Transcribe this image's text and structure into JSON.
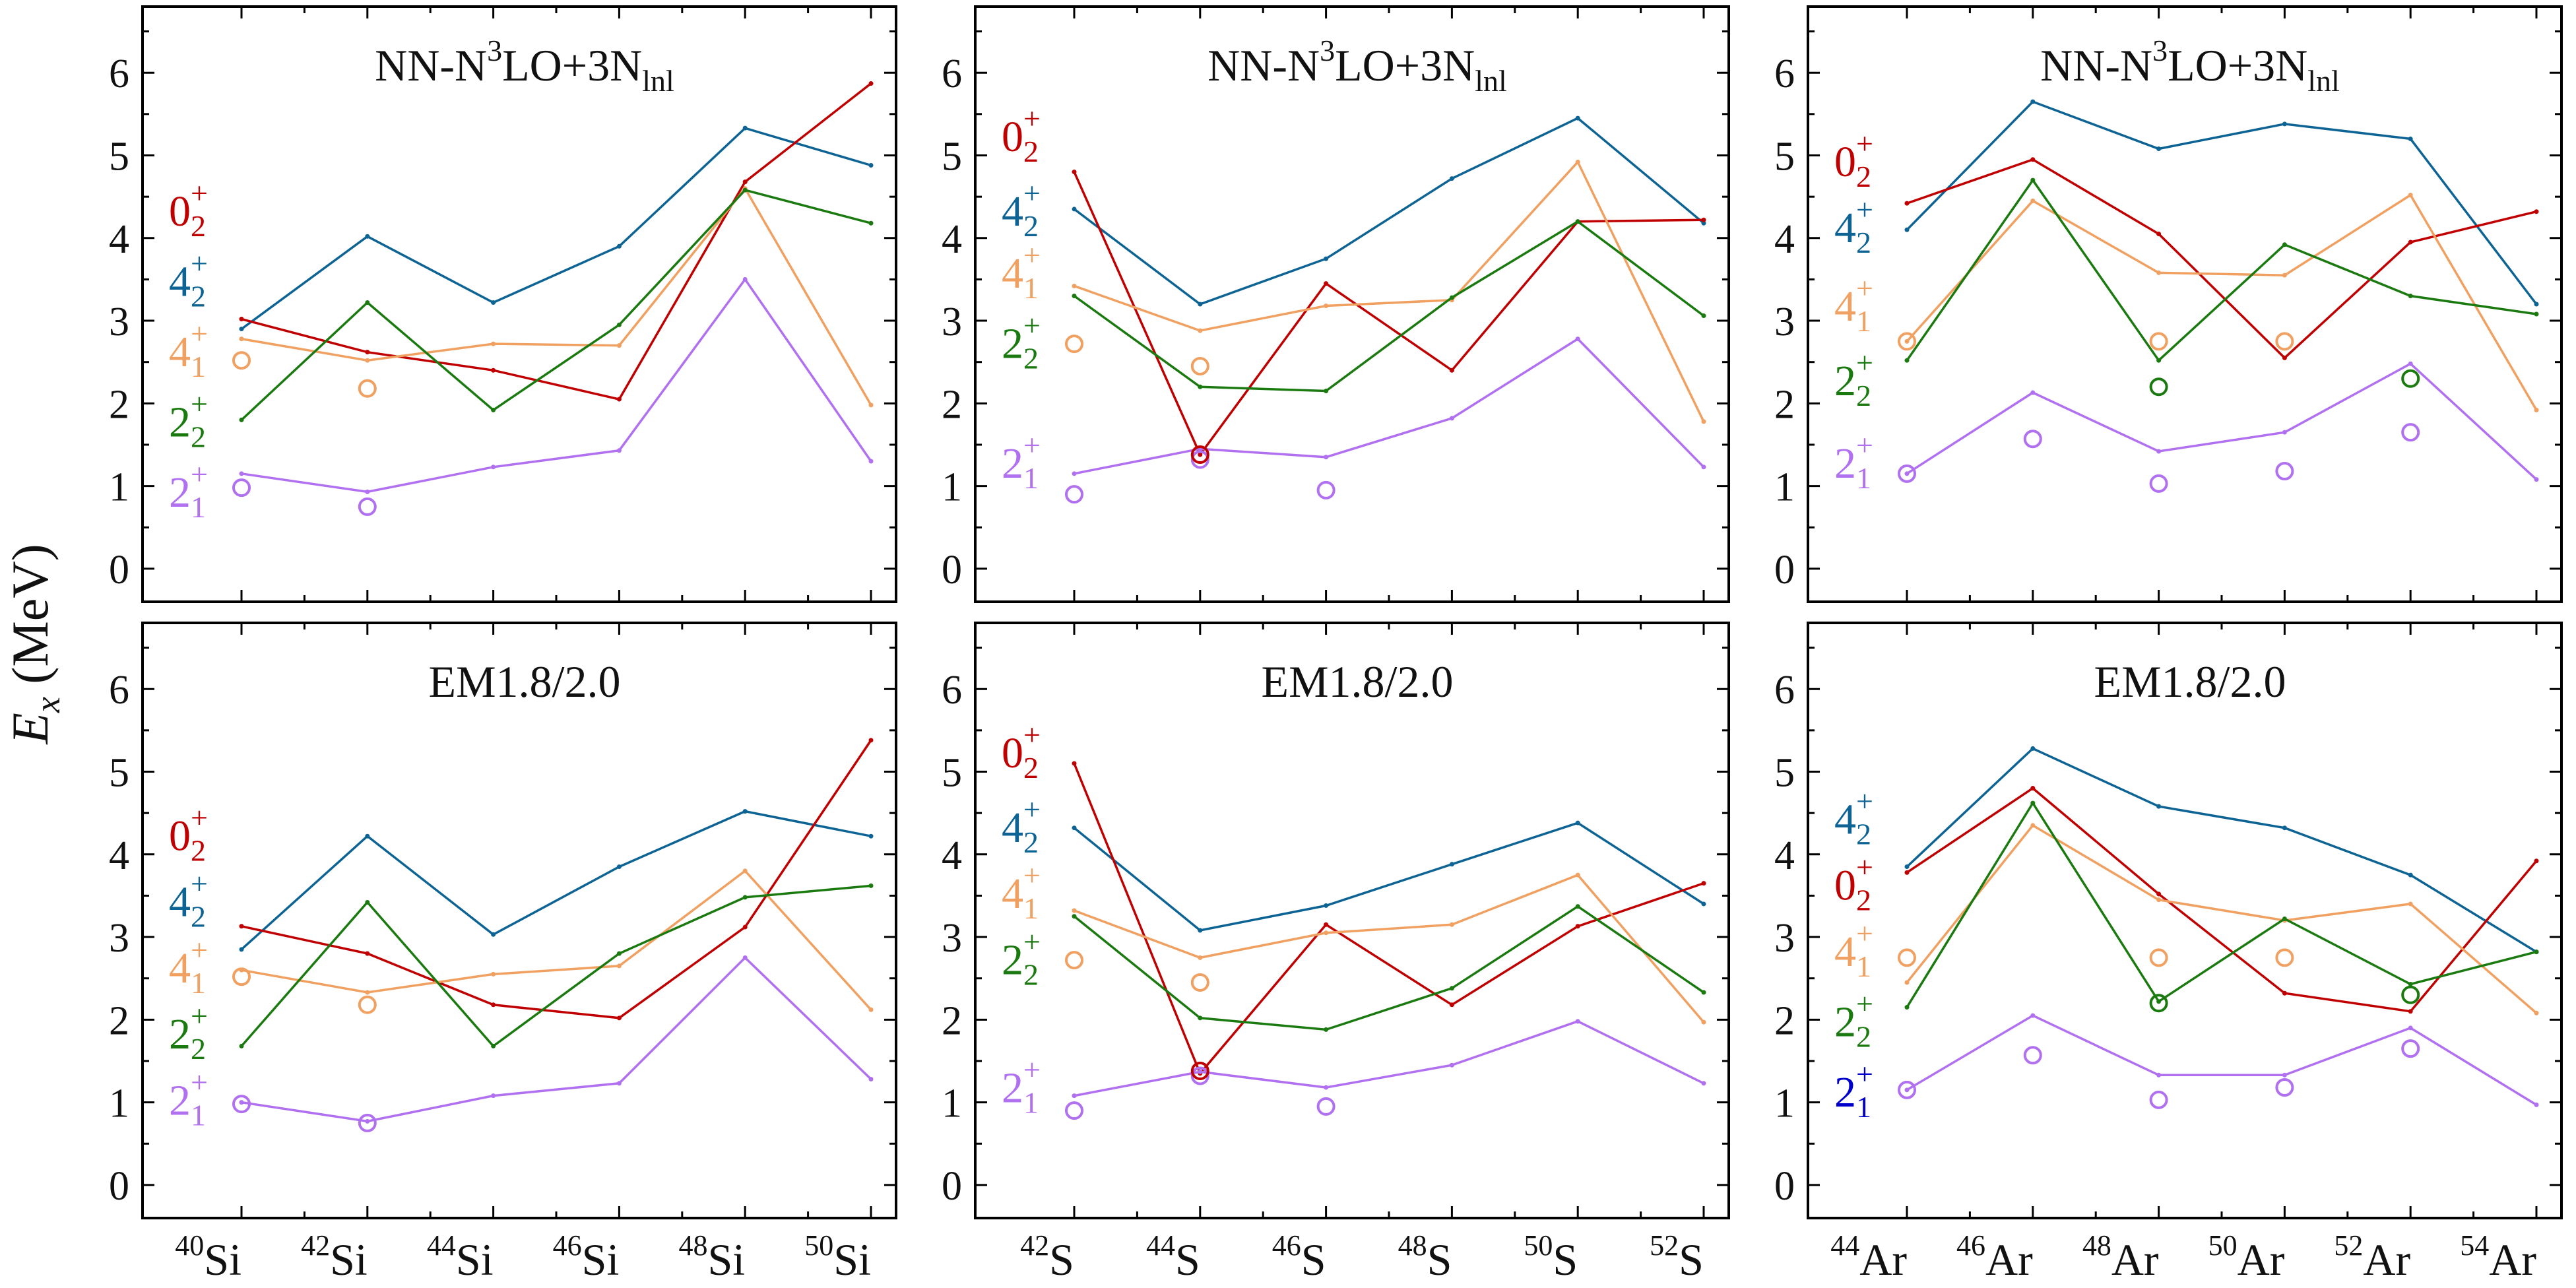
{
  "figure": {
    "ylabel_main": "E",
    "ylabel_sub": "x",
    "ylabel_unit": " (MeV)"
  },
  "colors": {
    "0_2": "#c00000",
    "4_2": "#0d6494",
    "4_1": "#f0a060",
    "2_2": "#1a7a10",
    "2_1": "#b070f0",
    "2_1_alt": "#0000cc"
  },
  "chart_data": [
    {
      "type": "line",
      "title": {
        "main": "NN-N",
        "sup": "3",
        "mid": "LO+3N",
        "sub": "lnl"
      },
      "categories": [
        {
          "mass": "40",
          "el": "Si"
        },
        {
          "mass": "42",
          "el": "Si"
        },
        {
          "mass": "44",
          "el": "Si"
        },
        {
          "mass": "46",
          "el": "Si"
        },
        {
          "mass": "48",
          "el": "Si"
        },
        {
          "mass": "50",
          "el": "Si"
        }
      ],
      "ylim": [
        -0.4,
        6.8
      ],
      "yticks": [
        0,
        1,
        2,
        3,
        4,
        5,
        6
      ],
      "series": [
        {
          "key": "4_2",
          "values": [
            2.9,
            4.02,
            3.22,
            3.9,
            5.33,
            4.88
          ]
        },
        {
          "key": "0_2",
          "values": [
            3.02,
            2.62,
            2.4,
            2.05,
            4.68,
            5.87
          ]
        },
        {
          "key": "4_1",
          "values": [
            2.78,
            2.52,
            2.72,
            2.7,
            4.6,
            1.98
          ]
        },
        {
          "key": "2_2",
          "values": [
            1.8,
            3.22,
            1.92,
            2.95,
            4.58,
            4.18
          ]
        },
        {
          "key": "2_1",
          "values": [
            1.15,
            0.93,
            1.23,
            1.43,
            3.5,
            1.3
          ]
        }
      ],
      "experiment": [
        {
          "key": "4_1",
          "points": [
            [
              0,
              2.52
            ],
            [
              1,
              2.18
            ]
          ]
        },
        {
          "key": "2_1",
          "points": [
            [
              0,
              0.98
            ],
            [
              1,
              0.75
            ]
          ]
        }
      ],
      "labels": [
        {
          "key": "0_2",
          "num": "0",
          "sub": "2",
          "y": 4.15
        },
        {
          "key": "4_2",
          "num": "4",
          "sub": "2",
          "y": 3.3
        },
        {
          "key": "4_1",
          "num": "4",
          "sub": "1",
          "y": 2.45
        },
        {
          "key": "2_2",
          "num": "2",
          "sub": "2",
          "y": 1.6
        },
        {
          "key": "2_1",
          "num": "2",
          "sub": "1",
          "y": 0.75
        }
      ]
    },
    {
      "type": "line",
      "title": {
        "main": "NN-N",
        "sup": "3",
        "mid": "LO+3N",
        "sub": "lnl"
      },
      "categories": [
        {
          "mass": "42",
          "el": "S"
        },
        {
          "mass": "44",
          "el": "S"
        },
        {
          "mass": "46",
          "el": "S"
        },
        {
          "mass": "48",
          "el": "S"
        },
        {
          "mass": "50",
          "el": "S"
        },
        {
          "mass": "52",
          "el": "S"
        }
      ],
      "ylim": [
        -0.4,
        6.8
      ],
      "yticks": [
        0,
        1,
        2,
        3,
        4,
        5,
        6
      ],
      "series": [
        {
          "key": "4_2",
          "values": [
            4.35,
            3.2,
            3.75,
            4.72,
            5.45,
            4.18
          ]
        },
        {
          "key": "0_2",
          "values": [
            4.8,
            1.38,
            3.45,
            2.4,
            4.2,
            4.22
          ]
        },
        {
          "key": "4_1",
          "values": [
            3.42,
            2.88,
            3.18,
            3.25,
            4.92,
            1.78
          ]
        },
        {
          "key": "2_2",
          "values": [
            3.3,
            2.2,
            2.15,
            3.28,
            4.2,
            3.06
          ]
        },
        {
          "key": "2_1",
          "values": [
            1.15,
            1.45,
            1.35,
            1.82,
            2.78,
            1.23
          ]
        }
      ],
      "experiment": [
        {
          "key": "4_1",
          "points": [
            [
              0,
              2.72
            ],
            [
              1,
              2.45
            ]
          ]
        },
        {
          "key": "2_1",
          "points": [
            [
              0,
              0.9
            ],
            [
              1,
              1.32
            ],
            [
              2,
              0.95
            ]
          ]
        },
        {
          "key": "0_2",
          "points": [
            [
              1,
              1.38
            ]
          ]
        }
      ],
      "labels": [
        {
          "key": "0_2",
          "num": "0",
          "sub": "2",
          "y": 5.05
        },
        {
          "key": "4_2",
          "num": "4",
          "sub": "2",
          "y": 4.15
        },
        {
          "key": "4_1",
          "num": "4",
          "sub": "1",
          "y": 3.4
        },
        {
          "key": "2_2",
          "num": "2",
          "sub": "2",
          "y": 2.55
        },
        {
          "key": "2_1",
          "num": "2",
          "sub": "1",
          "y": 1.1
        }
      ]
    },
    {
      "type": "line",
      "title": {
        "main": "NN-N",
        "sup": "3",
        "mid": "LO+3N",
        "sub": "lnl"
      },
      "categories": [
        {
          "mass": "44",
          "el": "Ar"
        },
        {
          "mass": "46",
          "el": "Ar"
        },
        {
          "mass": "48",
          "el": "Ar"
        },
        {
          "mass": "50",
          "el": "Ar"
        },
        {
          "mass": "52",
          "el": "Ar"
        },
        {
          "mass": "54",
          "el": "Ar"
        }
      ],
      "ylim": [
        -0.4,
        6.8
      ],
      "yticks": [
        0,
        1,
        2,
        3,
        4,
        5,
        6
      ],
      "series": [
        {
          "key": "4_2",
          "values": [
            4.1,
            5.65,
            5.08,
            5.38,
            5.2,
            3.2
          ]
        },
        {
          "key": "0_2",
          "values": [
            4.42,
            4.95,
            4.05,
            2.55,
            3.95,
            4.32
          ]
        },
        {
          "key": "4_1",
          "values": [
            2.75,
            4.45,
            3.58,
            3.55,
            4.52,
            1.92
          ]
        },
        {
          "key": "2_2",
          "values": [
            2.52,
            4.7,
            2.52,
            3.92,
            3.3,
            3.08
          ]
        },
        {
          "key": "2_1",
          "values": [
            1.15,
            2.13,
            1.42,
            1.65,
            2.48,
            1.08
          ]
        }
      ],
      "experiment": [
        {
          "key": "4_1",
          "points": [
            [
              0,
              2.75
            ],
            [
              2,
              2.75
            ],
            [
              3,
              2.75
            ]
          ]
        },
        {
          "key": "2_2",
          "points": [
            [
              2,
              2.2
            ],
            [
              4,
              2.3
            ]
          ]
        },
        {
          "key": "2_1",
          "points": [
            [
              0,
              1.15
            ],
            [
              1,
              1.57
            ],
            [
              2,
              1.03
            ],
            [
              3,
              1.18
            ],
            [
              4,
              1.65
            ]
          ]
        }
      ],
      "labels": [
        {
          "key": "0_2",
          "num": "0",
          "sub": "2",
          "y": 4.75
        },
        {
          "key": "4_2",
          "num": "4",
          "sub": "2",
          "y": 3.95
        },
        {
          "key": "4_1",
          "num": "4",
          "sub": "1",
          "y": 3.0
        },
        {
          "key": "2_2",
          "num": "2",
          "sub": "2",
          "y": 2.1
        },
        {
          "key": "2_1",
          "num": "2",
          "sub": "1",
          "y": 1.1
        }
      ]
    },
    {
      "type": "line",
      "title": {
        "main": "EM1.8/2.0"
      },
      "categories": [
        {
          "mass": "40",
          "el": "Si"
        },
        {
          "mass": "42",
          "el": "Si"
        },
        {
          "mass": "44",
          "el": "Si"
        },
        {
          "mass": "46",
          "el": "Si"
        },
        {
          "mass": "48",
          "el": "Si"
        },
        {
          "mass": "50",
          "el": "Si"
        }
      ],
      "ylim": [
        -0.4,
        6.8
      ],
      "yticks": [
        0,
        1,
        2,
        3,
        4,
        5,
        6
      ],
      "series": [
        {
          "key": "4_2",
          "values": [
            2.85,
            4.22,
            3.03,
            3.85,
            4.52,
            4.22
          ]
        },
        {
          "key": "0_2",
          "values": [
            3.13,
            2.8,
            2.18,
            2.02,
            3.12,
            5.38
          ]
        },
        {
          "key": "4_1",
          "values": [
            2.6,
            2.33,
            2.55,
            2.65,
            3.8,
            2.12
          ]
        },
        {
          "key": "2_2",
          "values": [
            1.68,
            3.42,
            1.68,
            2.8,
            3.48,
            3.62
          ]
        },
        {
          "key": "2_1",
          "values": [
            1.0,
            0.77,
            1.08,
            1.23,
            2.75,
            1.28
          ]
        }
      ],
      "experiment": [
        {
          "key": "4_1",
          "points": [
            [
              0,
              2.52
            ],
            [
              1,
              2.18
            ]
          ]
        },
        {
          "key": "2_1",
          "points": [
            [
              0,
              0.98
            ],
            [
              1,
              0.75
            ]
          ]
        }
      ],
      "labels": [
        {
          "key": "0_2",
          "num": "0",
          "sub": "2",
          "y": 4.05
        },
        {
          "key": "4_2",
          "num": "4",
          "sub": "2",
          "y": 3.25
        },
        {
          "key": "4_1",
          "num": "4",
          "sub": "1",
          "y": 2.45
        },
        {
          "key": "2_2",
          "num": "2",
          "sub": "2",
          "y": 1.65
        },
        {
          "key": "2_1",
          "num": "2",
          "sub": "1",
          "y": 0.85
        }
      ]
    },
    {
      "type": "line",
      "title": {
        "main": "EM1.8/2.0"
      },
      "categories": [
        {
          "mass": "42",
          "el": "S"
        },
        {
          "mass": "44",
          "el": "S"
        },
        {
          "mass": "46",
          "el": "S"
        },
        {
          "mass": "48",
          "el": "S"
        },
        {
          "mass": "50",
          "el": "S"
        },
        {
          "mass": "52",
          "el": "S"
        }
      ],
      "ylim": [
        -0.4,
        6.8
      ],
      "yticks": [
        0,
        1,
        2,
        3,
        4,
        5,
        6
      ],
      "series": [
        {
          "key": "4_2",
          "values": [
            4.32,
            3.08,
            3.38,
            3.88,
            4.38,
            3.4
          ]
        },
        {
          "key": "0_2",
          "values": [
            5.1,
            1.35,
            3.15,
            2.18,
            3.13,
            3.65
          ]
        },
        {
          "key": "4_1",
          "values": [
            3.32,
            2.75,
            3.05,
            3.15,
            3.75,
            1.97
          ]
        },
        {
          "key": "2_2",
          "values": [
            3.25,
            2.02,
            1.88,
            2.38,
            3.37,
            2.33
          ]
        },
        {
          "key": "2_1",
          "values": [
            1.08,
            1.37,
            1.18,
            1.45,
            1.98,
            1.23
          ]
        }
      ],
      "experiment": [
        {
          "key": "4_1",
          "points": [
            [
              0,
              2.72
            ],
            [
              1,
              2.45
            ]
          ]
        },
        {
          "key": "2_1",
          "points": [
            [
              0,
              0.9
            ],
            [
              1,
              1.32
            ],
            [
              2,
              0.95
            ]
          ]
        },
        {
          "key": "0_2",
          "points": [
            [
              1,
              1.38
            ]
          ]
        }
      ],
      "labels": [
        {
          "key": "0_2",
          "num": "0",
          "sub": "2",
          "y": 5.05
        },
        {
          "key": "4_2",
          "num": "4",
          "sub": "2",
          "y": 4.15
        },
        {
          "key": "4_1",
          "num": "4",
          "sub": "1",
          "y": 3.35
        },
        {
          "key": "2_2",
          "num": "2",
          "sub": "2",
          "y": 2.55
        },
        {
          "key": "2_1",
          "num": "2",
          "sub": "1",
          "y": 1.0
        }
      ]
    },
    {
      "type": "line",
      "title": {
        "main": "EM1.8/2.0"
      },
      "categories": [
        {
          "mass": "44",
          "el": "Ar"
        },
        {
          "mass": "46",
          "el": "Ar"
        },
        {
          "mass": "48",
          "el": "Ar"
        },
        {
          "mass": "50",
          "el": "Ar"
        },
        {
          "mass": "52",
          "el": "Ar"
        },
        {
          "mass": "54",
          "el": "Ar"
        }
      ],
      "ylim": [
        -0.4,
        6.8
      ],
      "yticks": [
        0,
        1,
        2,
        3,
        4,
        5,
        6
      ],
      "series": [
        {
          "key": "4_2",
          "values": [
            3.85,
            5.28,
            4.58,
            4.32,
            3.75,
            2.82
          ]
        },
        {
          "key": "0_2",
          "values": [
            3.78,
            4.8,
            3.52,
            2.32,
            2.1,
            3.92
          ]
        },
        {
          "key": "4_1",
          "values": [
            2.45,
            4.35,
            3.45,
            3.2,
            3.4,
            2.08
          ]
        },
        {
          "key": "2_2",
          "values": [
            2.15,
            4.62,
            2.22,
            3.22,
            2.43,
            2.82
          ]
        },
        {
          "key": "2_1",
          "values": [
            1.15,
            2.05,
            1.33,
            1.33,
            1.9,
            0.97
          ]
        }
      ],
      "experiment": [
        {
          "key": "4_1",
          "points": [
            [
              0,
              2.75
            ],
            [
              2,
              2.75
            ],
            [
              3,
              2.75
            ]
          ]
        },
        {
          "key": "2_2",
          "points": [
            [
              2,
              2.2
            ],
            [
              4,
              2.3
            ]
          ]
        },
        {
          "key": "2_1",
          "points": [
            [
              0,
              1.15
            ],
            [
              1,
              1.57
            ],
            [
              2,
              1.03
            ],
            [
              3,
              1.18
            ],
            [
              4,
              1.65
            ]
          ]
        }
      ],
      "labels": [
        {
          "key": "4_2",
          "num": "4",
          "sub": "2",
          "y": 4.25
        },
        {
          "key": "0_2",
          "num": "0",
          "sub": "2",
          "y": 3.45
        },
        {
          "key": "4_1",
          "num": "4",
          "sub": "1",
          "y": 2.65
        },
        {
          "key": "2_2",
          "num": "2",
          "sub": "2",
          "y": 1.8
        },
        {
          "key": "2_1_alt",
          "num": "2",
          "sub": "1",
          "y": 0.95
        }
      ]
    }
  ]
}
